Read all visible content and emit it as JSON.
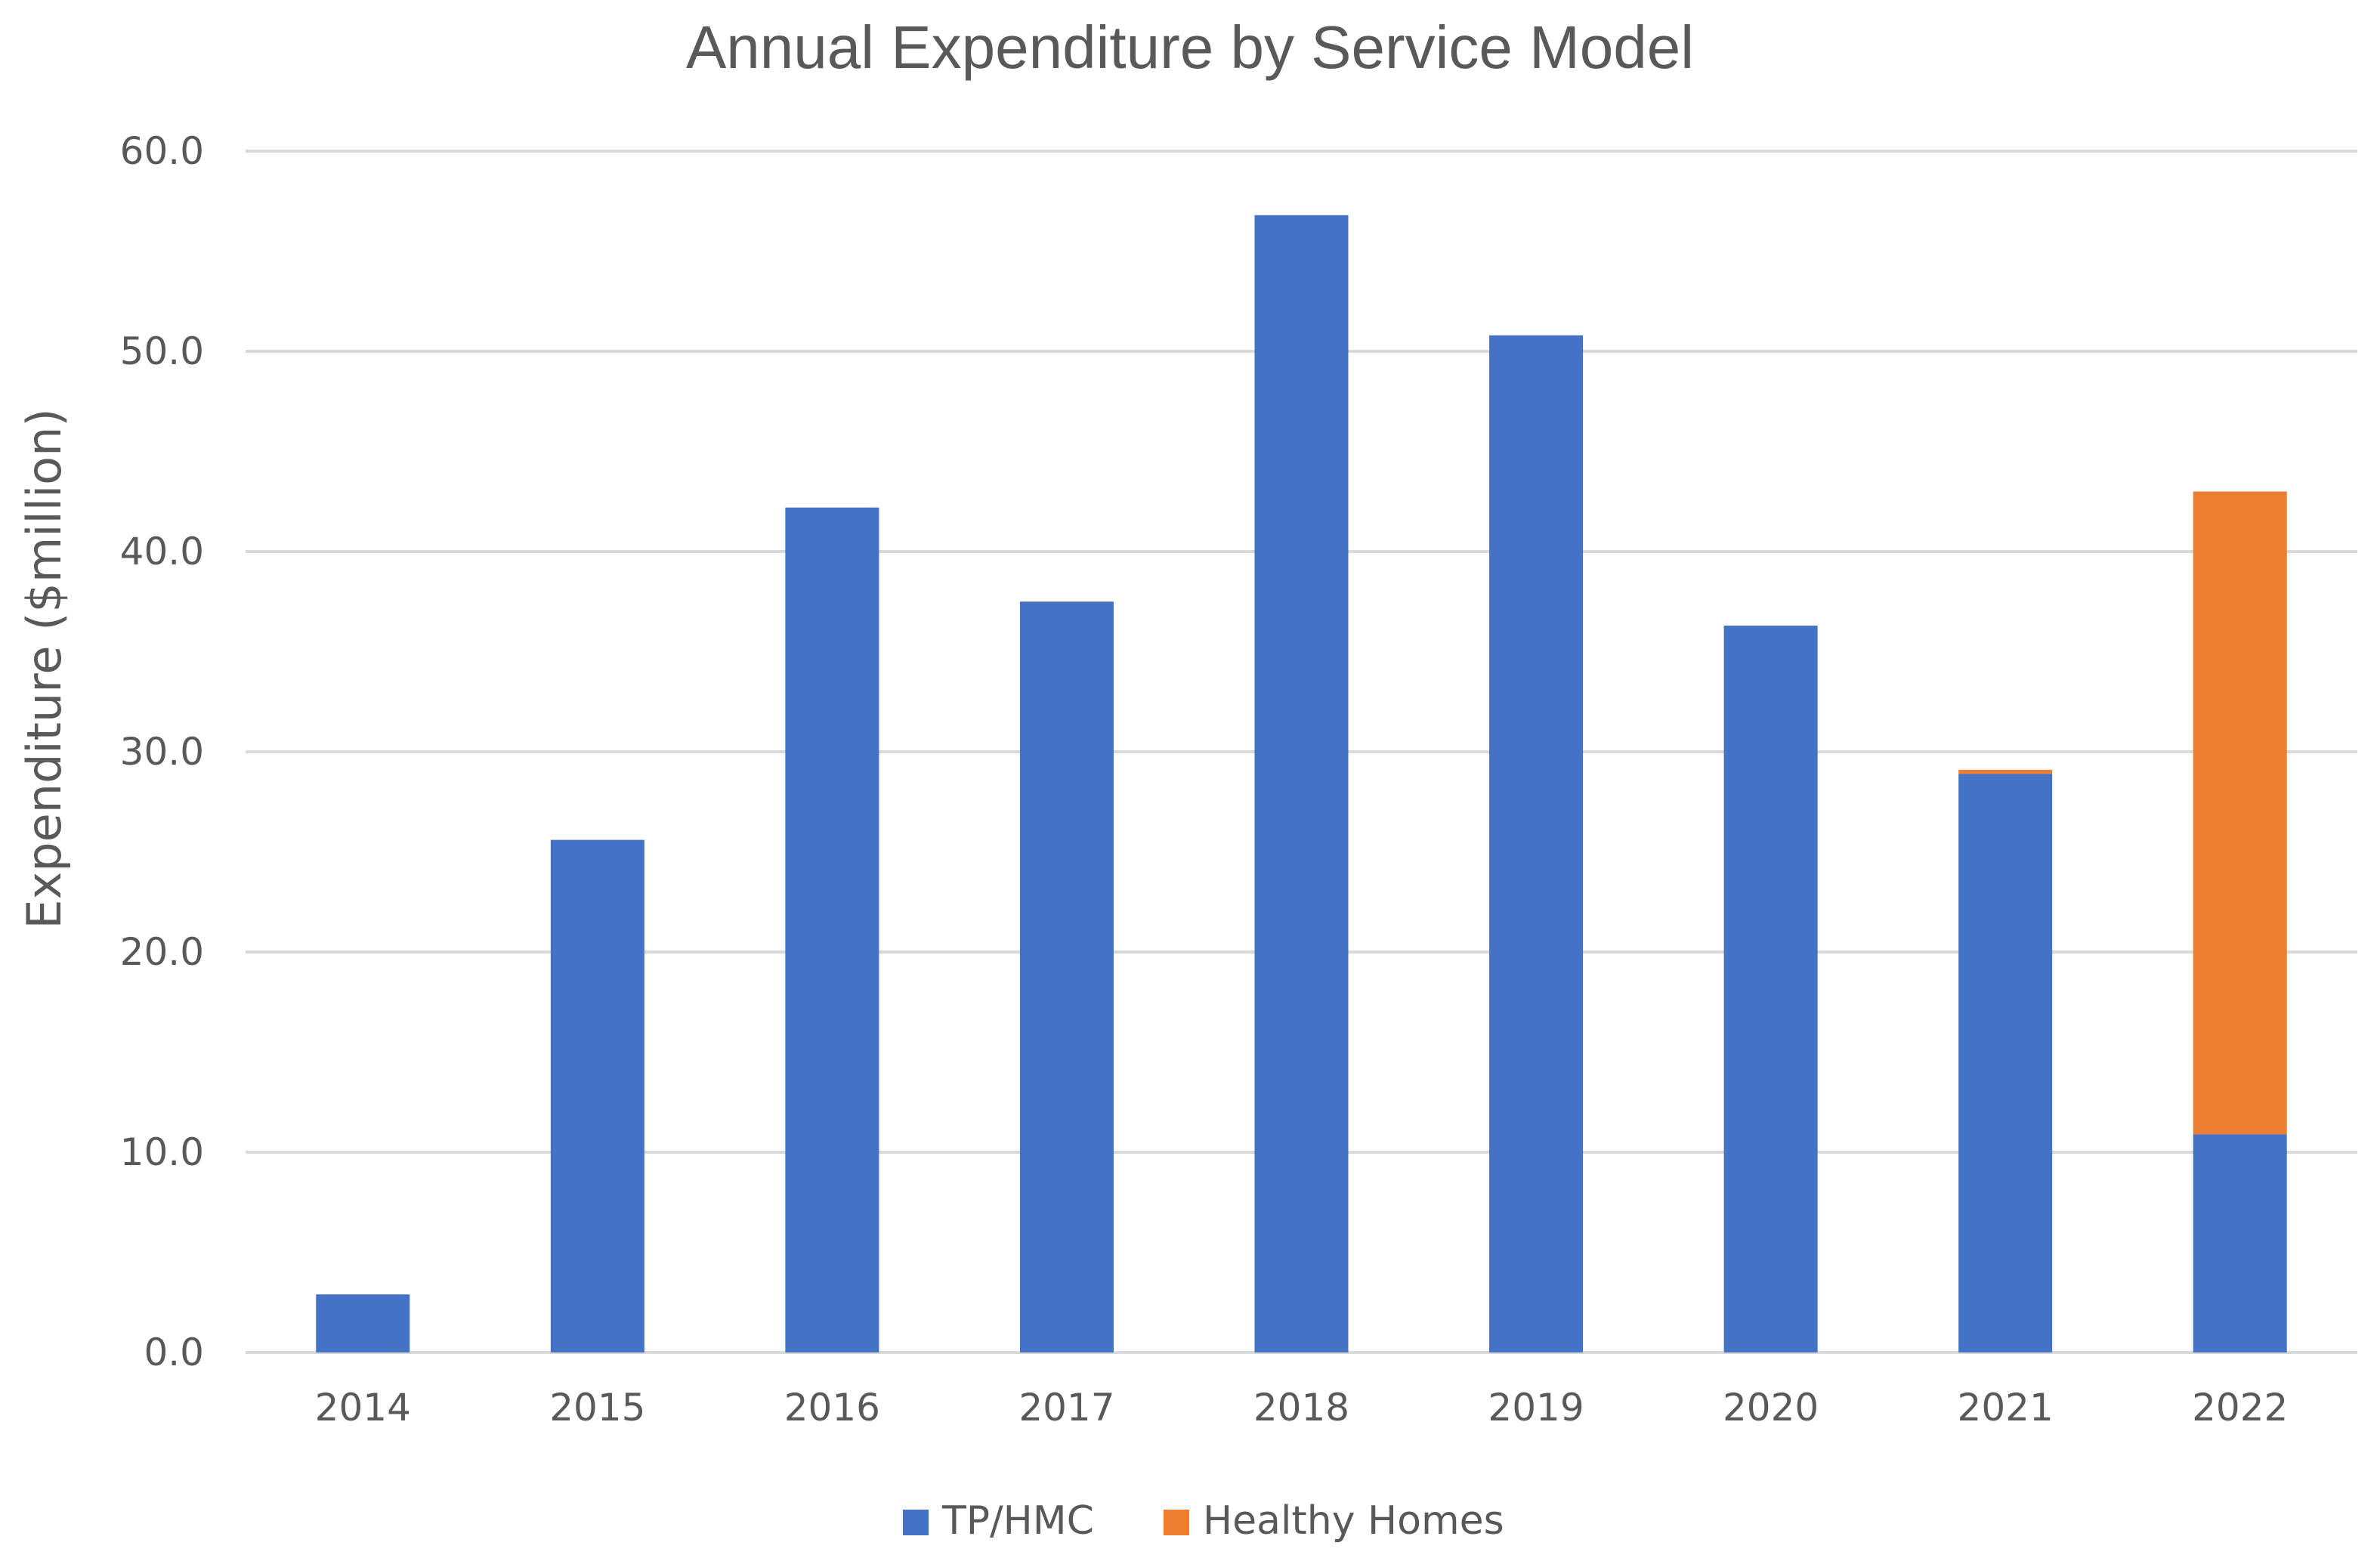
{
  "chart_data": {
    "type": "bar",
    "stacked": true,
    "title": "Annual Expenditure by Service Model",
    "xlabel": "",
    "ylabel": "Expenditure  ($million)",
    "ylim": [
      0,
      60
    ],
    "yticks": [
      0,
      10,
      20,
      30,
      40,
      50,
      60
    ],
    "ytick_labels": [
      "0.0",
      "10.0",
      "20.0",
      "30.0",
      "40.0",
      "50.0",
      "60.0"
    ],
    "grid": true,
    "legend_position": "bottom",
    "categories": [
      "2014",
      "2015",
      "2016",
      "2017",
      "2018",
      "2019",
      "2020",
      "2021",
      "2022"
    ],
    "series": [
      {
        "name": "TP/HMC",
        "color": "#4472c4",
        "values": [
          2.9,
          25.6,
          42.2,
          37.5,
          56.8,
          50.8,
          36.3,
          28.9,
          10.9
        ]
      },
      {
        "name": "Healthy Homes",
        "color": "#ed7d31",
        "values": [
          0,
          0,
          0,
          0,
          0,
          0,
          0,
          0.2,
          32.1
        ]
      }
    ]
  }
}
